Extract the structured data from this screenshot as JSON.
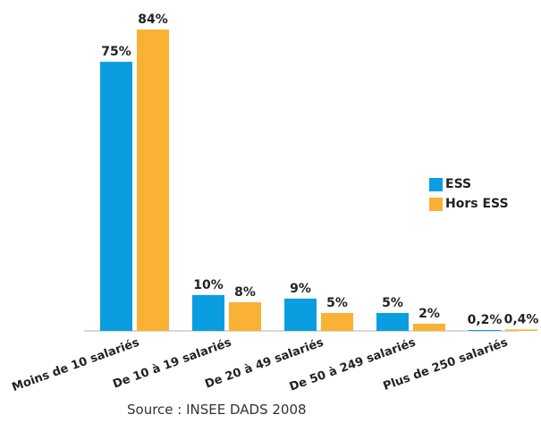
{
  "chart_data": {
    "type": "bar",
    "categories": [
      "Moins de 10 salariés",
      "De 10 à 19 salariés",
      "De 20 à 49 salariés",
      "De 50 à 249 salariés",
      "Plus de 250 salariés"
    ],
    "series": [
      {
        "name": "ESS",
        "values": [
          75,
          10,
          9,
          5,
          0.2
        ],
        "labels": [
          "75%",
          "10%",
          "9%",
          "5%",
          "0,2%"
        ],
        "color": "#0a9ee0"
      },
      {
        "name": "Hors ESS",
        "values": [
          84,
          8,
          5,
          2,
          0.4
        ],
        "labels": [
          "84%",
          "8%",
          "5%",
          "2%",
          "0,4%"
        ],
        "color": "#f9b233"
      }
    ],
    "ylim": [
      0,
      84
    ],
    "grid": false,
    "legend_position": "right"
  },
  "legend": {
    "ess": "ESS",
    "hors_ess": "Hors ESS"
  },
  "source": "Source : INSEE DADS 2008",
  "colors": {
    "ess": "#0a9ee0",
    "hors_ess": "#f9b233",
    "axis": "#b0b0b0"
  }
}
